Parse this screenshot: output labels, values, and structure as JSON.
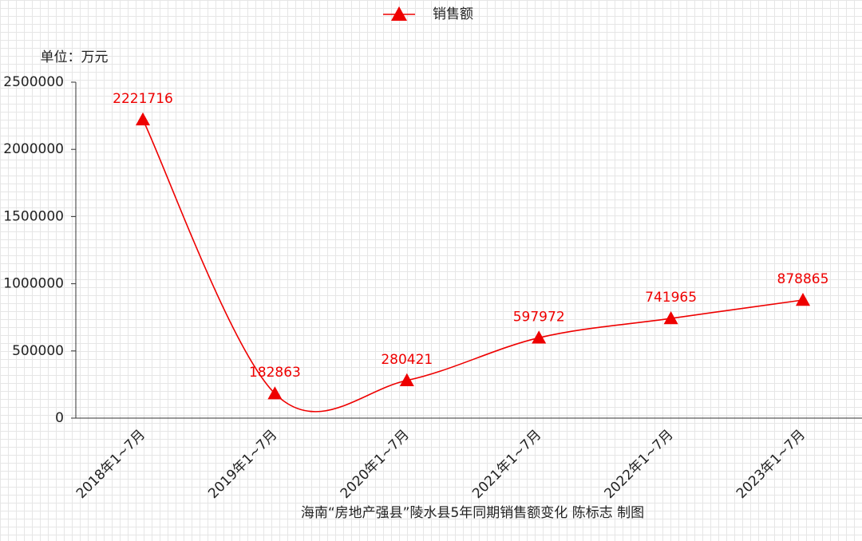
{
  "chart_data": {
    "type": "line",
    "legend": "top",
    "unit_label": "单位：万元",
    "caption": "海南“房地产强县”陵水县5年同期销售额变化    陈标志 制图",
    "categories": [
      "2018年1~7月",
      "2019年1~7月",
      "2020年1~7月",
      "2021年1~7月",
      "2022年1~7月",
      "2023年1~7月"
    ],
    "series": [
      {
        "name": "销售额",
        "color": "#ee0000",
        "values": [
          2221716,
          182863,
          280421,
          597972,
          741965,
          878865
        ]
      }
    ],
    "ylim": [
      0,
      2500000
    ],
    "yticks": [
      0,
      500000,
      1000000,
      1500000,
      2000000,
      2500000
    ],
    "data_labels": true,
    "smooth": true
  }
}
